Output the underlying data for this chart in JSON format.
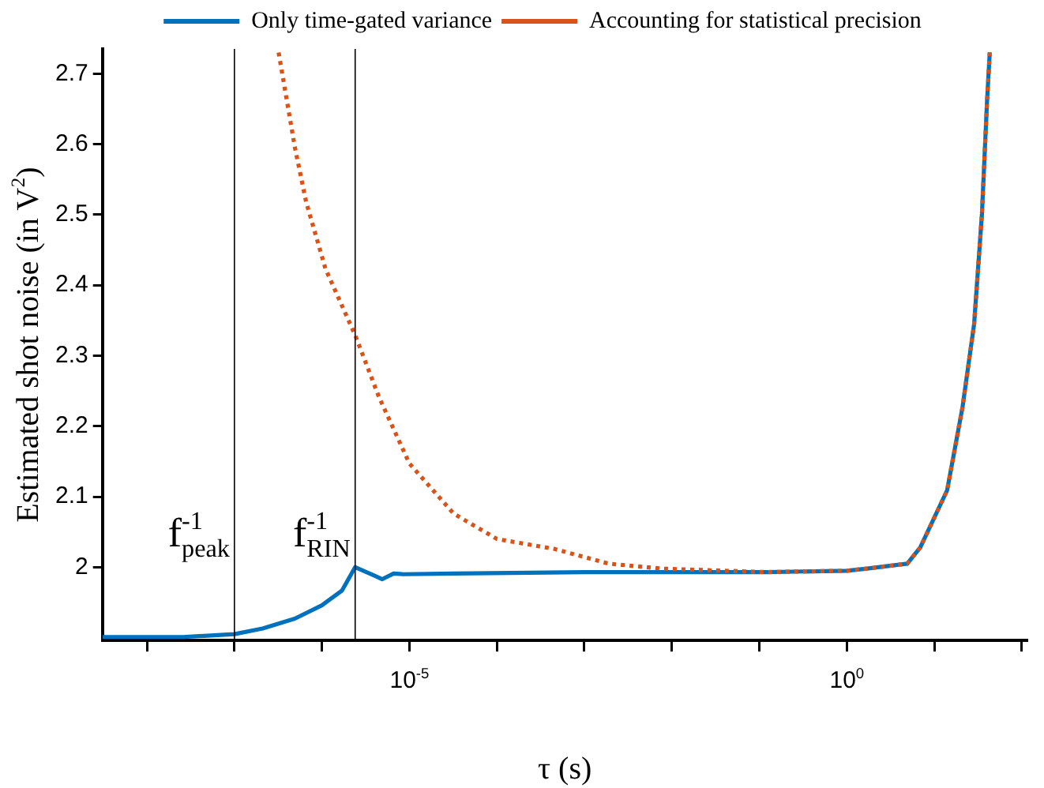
{
  "chart_data": {
    "type": "line",
    "xlabel": "τ (s)",
    "ylabel": "Estimated shot noise (in V$^{2}$)",
    "log": "x",
    "xlim": [
      3.1e-09,
      115
    ],
    "ylim": [
      1.896,
      2.735
    ],
    "xticks": [
      {
        "value": 1e-08,
        "label": null
      },
      {
        "value": 1e-07,
        "label": null
      },
      {
        "value": 1e-06,
        "label": null
      },
      {
        "value": 1e-05,
        "label": "10$^{-5}$"
      },
      {
        "value": 0.0001,
        "label": null
      },
      {
        "value": 0.001,
        "label": null
      },
      {
        "value": 0.01,
        "label": null
      },
      {
        "value": 0.1,
        "label": null
      },
      {
        "value": 1,
        "label": "10$^{0}$"
      },
      {
        "value": 10,
        "label": null
      },
      {
        "value": 100,
        "label": null
      }
    ],
    "yticks": [
      2,
      2.1,
      2.2,
      2.3,
      2.4,
      2.5,
      2.6,
      2.7
    ],
    "grid": false,
    "legend": "top",
    "marker": "none",
    "series": [
      {
        "name": "Only time-gated variance",
        "color": "#0072bd",
        "line_style": "solid",
        "x": [
          3.1e-09,
          2.6e-08,
          1e-07,
          2.1e-07,
          4.9e-07,
          1e-06,
          1.7e-06,
          2.4e-06,
          4e-06,
          4.9e-06,
          6.6e-06,
          8.5e-06,
          3.2e-05,
          0.001,
          0.12,
          1,
          1.7,
          4.9,
          6.9,
          14,
          21,
          28.5,
          35,
          40,
          43
        ],
        "values": [
          1.901,
          1.901,
          1.905,
          1.913,
          1.927,
          1.946,
          1.967,
          2.0,
          1.988,
          1.983,
          1.991,
          1.99,
          1.991,
          1.993,
          1.993,
          1.995,
          1.998,
          2.005,
          2.028,
          2.109,
          2.227,
          2.345,
          2.501,
          2.66,
          2.73
        ]
      },
      {
        "name": "Accounting for statistical precision",
        "color": "#d95319",
        "line_style": "dotted",
        "x": [
          3.2e-07,
          4.9e-07,
          6.6e-07,
          1.1e-06,
          2.4e-06,
          4.5e-06,
          1e-05,
          3.2e-05,
          0.0001,
          0.00045,
          0.0019,
          0.0075,
          0.12,
          1,
          1.7,
          4.9,
          6.9,
          14,
          21,
          28.5,
          35,
          40,
          43
        ],
        "values": [
          2.73,
          2.596,
          2.518,
          2.423,
          2.329,
          2.241,
          2.147,
          2.076,
          2.04,
          2.026,
          2.005,
          1.998,
          1.993,
          1.995,
          1.998,
          2.005,
          2.028,
          2.109,
          2.227,
          2.345,
          2.501,
          2.66,
          2.73
        ]
      }
    ],
    "ref_lines": [
      {
        "axis": "x",
        "value": 1e-07,
        "label": "f$^{-1}$$_{peak}$",
        "color": "#000000",
        "line_style": "solid"
      },
      {
        "axis": "x",
        "value": 2.4e-06,
        "label": "f$^{-1}$$_{RIN}$",
        "color": "#000000",
        "line_style": "solid"
      }
    ]
  }
}
